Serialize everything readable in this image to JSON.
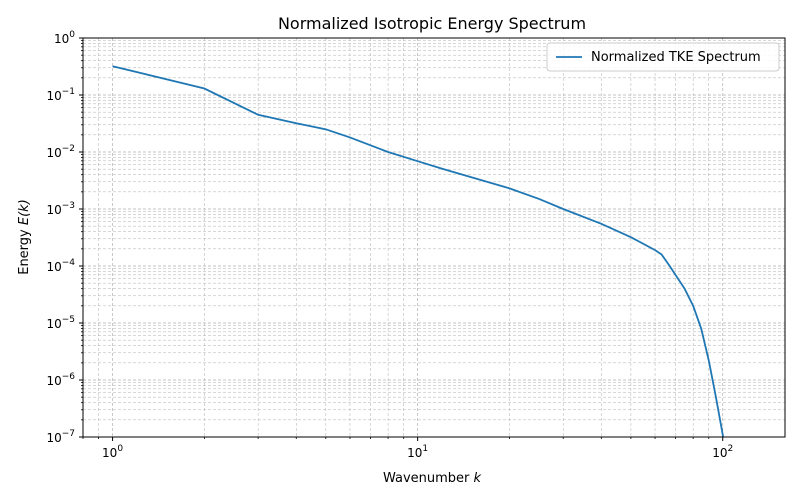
{
  "chart_data": {
    "type": "line",
    "title": "Normalized Isotropic Energy Spectrum",
    "xlabel": "Wavenumber k",
    "xlabel_prefix": "Wavenumber ",
    "xlabel_var": "k",
    "ylabel": "Energy E(k)",
    "ylabel_prefix": "Energy ",
    "ylabel_var": "E(k)",
    "x_scale": "log",
    "y_scale": "log",
    "xlim": [
      0.8,
      160
    ],
    "ylim": [
      1e-07,
      1
    ],
    "x_ticks": [
      {
        "value": 1,
        "base": "10",
        "exp": "0"
      },
      {
        "value": 10,
        "base": "10",
        "exp": "1"
      },
      {
        "value": 100,
        "base": "10",
        "exp": "2"
      }
    ],
    "y_ticks": [
      {
        "value": 1e-07,
        "base": "10",
        "exp": "−7"
      },
      {
        "value": 1e-06,
        "base": "10",
        "exp": "−6"
      },
      {
        "value": 1e-05,
        "base": "10",
        "exp": "−5"
      },
      {
        "value": 0.0001,
        "base": "10",
        "exp": "−4"
      },
      {
        "value": 0.001,
        "base": "10",
        "exp": "−3"
      },
      {
        "value": 0.01,
        "base": "10",
        "exp": "−2"
      },
      {
        "value": 0.1,
        "base": "10",
        "exp": "−1"
      },
      {
        "value": 1,
        "base": "10",
        "exp": "0"
      }
    ],
    "grid": "both major and minor, dashed",
    "legend_position": "top-right",
    "series": [
      {
        "name": "Normalized TKE Spectrum",
        "color": "#1f77b4",
        "x": [
          1,
          2,
          3,
          4,
          5,
          6,
          8,
          10,
          12,
          15,
          20,
          25,
          30,
          40,
          50,
          60,
          63,
          67,
          70,
          75,
          80,
          85,
          90,
          95,
          100,
          105
        ],
        "y": [
          0.32,
          0.13,
          0.045,
          0.032,
          0.025,
          0.018,
          0.01,
          0.0069,
          0.0051,
          0.0036,
          0.0023,
          0.0015,
          0.001,
          0.00055,
          0.00032,
          0.00019,
          0.00016,
          0.0001,
          7e-05,
          4e-05,
          2e-05,
          8e-06,
          2.2e-06,
          5e-07,
          1.1e-07,
          2e-08
        ]
      }
    ]
  }
}
